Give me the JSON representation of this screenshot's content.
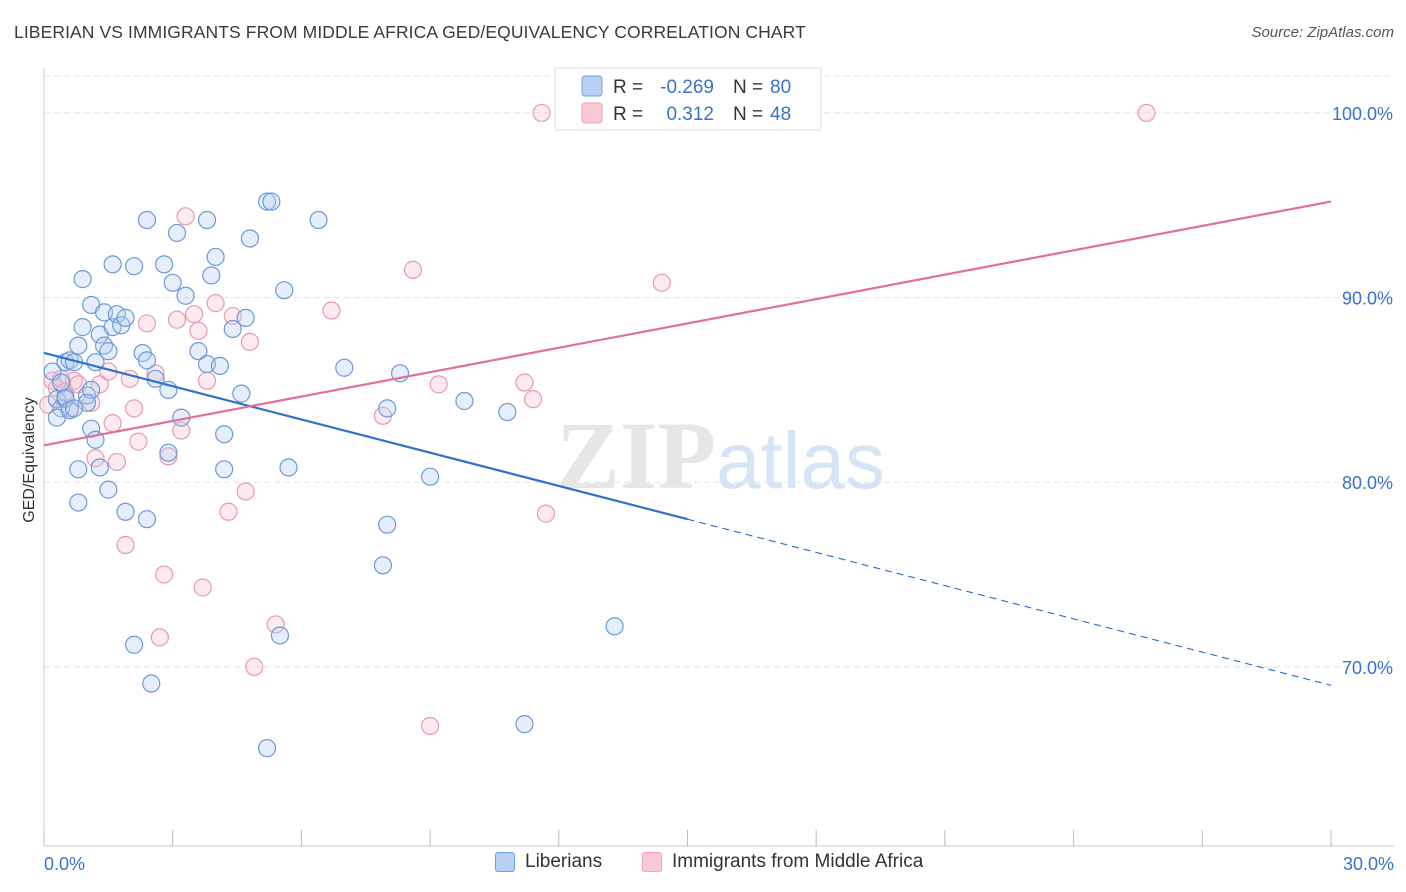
{
  "title": "LIBERIAN VS IMMIGRANTS FROM MIDDLE AFRICA GED/EQUIVALENCY CORRELATION CHART",
  "source": "Source: ZipAtlas.com",
  "watermark": {
    "zip": "ZIP",
    "atlas": "atlas"
  },
  "legend_stats": [
    {
      "r_label": "R =",
      "r_value": "-0.269",
      "n_label": "N =",
      "n_value": "80"
    },
    {
      "r_label": "R =",
      "r_value": "0.312",
      "n_label": "N =",
      "n_value": "48"
    }
  ],
  "colors": {
    "blue": "#6fa1e2",
    "blue_line": "#2f72cc",
    "pink": "#f0a0b8",
    "pink_line": "#e0709a",
    "axis_text": "#3a72c8"
  },
  "chart_data": {
    "type": "scatter",
    "xlabel": "",
    "ylabel": "GED/Equivalency",
    "xlim": [
      0,
      30
    ],
    "ylim": [
      60.3,
      102
    ],
    "x_tick_labels": [
      {
        "value": 0,
        "label": "0.0%"
      },
      {
        "value": 30,
        "label": "30.0%"
      }
    ],
    "y_tick_labels": [
      {
        "value": 100,
        "label": "100.0%"
      },
      {
        "value": 90,
        "label": "90.0%"
      },
      {
        "value": 80,
        "label": "80.0%"
      },
      {
        "value": 70,
        "label": "70.0%"
      }
    ],
    "grid": true,
    "legend_position": "bottom",
    "series": [
      {
        "name": "Liberians",
        "color": "#6fa1e2",
        "trend": {
          "x0": 0,
          "y0": 87.0,
          "x1": 15.0,
          "y1": 78.0,
          "x_dash_end": 30,
          "y_dash_end": 69.0
        },
        "points": [
          [
            0.2,
            86.0
          ],
          [
            0.3,
            84.5
          ],
          [
            0.4,
            84.0
          ],
          [
            0.3,
            83.5
          ],
          [
            0.5,
            86.5
          ],
          [
            0.6,
            86.6
          ],
          [
            0.7,
            86.5
          ],
          [
            0.8,
            87.4
          ],
          [
            0.9,
            88.4
          ],
          [
            1.0,
            84.7
          ],
          [
            1.1,
            85.0
          ],
          [
            1.0,
            84.3
          ],
          [
            0.9,
            91.0
          ],
          [
            1.1,
            89.6
          ],
          [
            1.3,
            88.0
          ],
          [
            1.2,
            86.5
          ],
          [
            1.4,
            87.4
          ],
          [
            1.5,
            87.1
          ],
          [
            1.4,
            89.2
          ],
          [
            1.6,
            88.4
          ],
          [
            1.7,
            89.1
          ],
          [
            1.8,
            88.5
          ],
          [
            1.9,
            88.9
          ],
          [
            1.6,
            91.8
          ],
          [
            2.1,
            91.7
          ],
          [
            2.3,
            87.0
          ],
          [
            2.4,
            86.6
          ],
          [
            2.4,
            94.2
          ],
          [
            2.6,
            85.6
          ],
          [
            2.8,
            91.8
          ],
          [
            2.9,
            85.0
          ],
          [
            3.0,
            90.8
          ],
          [
            3.1,
            93.5
          ],
          [
            3.3,
            90.1
          ],
          [
            3.2,
            83.5
          ],
          [
            3.6,
            87.1
          ],
          [
            3.8,
            86.4
          ],
          [
            3.8,
            94.2
          ],
          [
            3.9,
            91.2
          ],
          [
            4.0,
            92.2
          ],
          [
            4.1,
            86.3
          ],
          [
            4.2,
            82.6
          ],
          [
            4.4,
            88.3
          ],
          [
            4.6,
            84.8
          ],
          [
            4.7,
            88.9
          ],
          [
            4.8,
            93.2
          ],
          [
            5.2,
            95.2
          ],
          [
            5.3,
            95.2
          ],
          [
            5.6,
            90.4
          ],
          [
            6.4,
            94.2
          ],
          [
            1.1,
            82.9
          ],
          [
            1.2,
            82.3
          ],
          [
            0.8,
            80.7
          ],
          [
            1.3,
            80.8
          ],
          [
            1.5,
            79.6
          ],
          [
            0.8,
            78.9
          ],
          [
            1.9,
            78.4
          ],
          [
            2.4,
            78.0
          ],
          [
            2.9,
            81.6
          ],
          [
            4.2,
            80.7
          ],
          [
            5.7,
            80.8
          ],
          [
            7.0,
            86.2
          ],
          [
            7.9,
            75.5
          ],
          [
            8.0,
            77.7
          ],
          [
            8.0,
            84.0
          ],
          [
            8.3,
            85.9
          ],
          [
            9.0,
            80.3
          ],
          [
            9.8,
            84.4
          ],
          [
            10.8,
            83.8
          ],
          [
            11.2,
            66.9
          ],
          [
            13.3,
            72.2
          ],
          [
            2.1,
            71.2
          ],
          [
            2.5,
            69.1
          ],
          [
            5.5,
            71.7
          ],
          [
            5.2,
            65.6
          ],
          [
            0.5,
            84.5
          ],
          [
            0.5,
            84.6
          ],
          [
            0.4,
            85.4
          ],
          [
            0.6,
            83.9
          ],
          [
            0.7,
            84.0
          ]
        ]
      },
      {
        "name": "Immigrants from Middle Africa",
        "color": "#f0a0b8",
        "trend": {
          "x0": 0,
          "y0": 82.0,
          "x1": 30,
          "y1": 95.2
        },
        "points": [
          [
            0.1,
            84.2
          ],
          [
            0.2,
            85.5
          ],
          [
            0.3,
            85.1
          ],
          [
            0.4,
            85.6
          ],
          [
            0.5,
            84.9
          ],
          [
            0.6,
            84.0
          ],
          [
            0.7,
            85.5
          ],
          [
            0.8,
            85.3
          ],
          [
            1.1,
            84.3
          ],
          [
            1.2,
            81.3
          ],
          [
            1.3,
            85.3
          ],
          [
            1.5,
            86.0
          ],
          [
            1.6,
            83.2
          ],
          [
            1.7,
            81.1
          ],
          [
            1.9,
            76.6
          ],
          [
            2.0,
            85.6
          ],
          [
            2.1,
            84.0
          ],
          [
            2.2,
            82.2
          ],
          [
            2.4,
            88.6
          ],
          [
            2.6,
            85.9
          ],
          [
            2.8,
            75.0
          ],
          [
            2.9,
            81.4
          ],
          [
            3.1,
            88.8
          ],
          [
            3.2,
            82.8
          ],
          [
            3.3,
            94.4
          ],
          [
            3.5,
            89.1
          ],
          [
            3.6,
            88.2
          ],
          [
            3.7,
            74.3
          ],
          [
            3.8,
            85.5
          ],
          [
            4.0,
            89.7
          ],
          [
            4.3,
            78.4
          ],
          [
            4.4,
            89.0
          ],
          [
            4.7,
            79.5
          ],
          [
            4.8,
            87.6
          ],
          [
            4.9,
            70.0
          ],
          [
            5.4,
            72.3
          ],
          [
            6.7,
            89.3
          ],
          [
            7.9,
            83.6
          ],
          [
            8.6,
            91.5
          ],
          [
            9.0,
            66.8
          ],
          [
            9.2,
            85.3
          ],
          [
            11.2,
            85.4
          ],
          [
            11.4,
            84.5
          ],
          [
            11.7,
            78.3
          ],
          [
            11.6,
            100.0
          ],
          [
            14.4,
            90.8
          ],
          [
            25.7,
            100.0
          ],
          [
            2.7,
            71.6
          ]
        ]
      }
    ]
  }
}
